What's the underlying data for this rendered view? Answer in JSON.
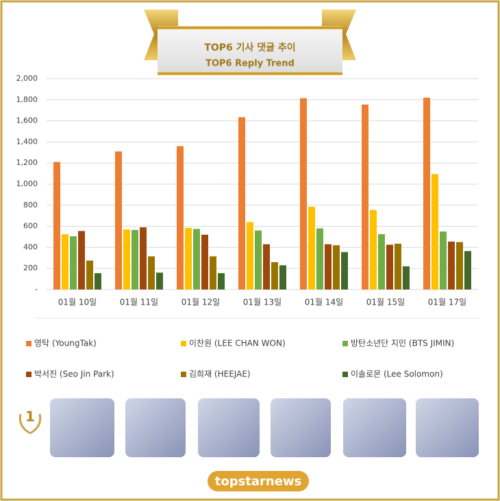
{
  "chart_data": {
    "type": "bar",
    "title": "TOP6 기사 댓글 추이",
    "subtitle": "TOP6 Reply Trend",
    "categories": [
      "01월 10일",
      "01월 11일",
      "01월 12일",
      "01월 13일",
      "01월 14일",
      "01월 15일",
      "01월 17일"
    ],
    "series": [
      {
        "name": "영탁 (YoungTak)",
        "color": "#ed7d31",
        "values": [
          1210,
          1310,
          1360,
          1635,
          1815,
          1755,
          1820
        ]
      },
      {
        "name": "이찬원 (LEE CHAN WON)",
        "color": "#ffc000",
        "values": [
          525,
          570,
          585,
          640,
          785,
          755,
          1095
        ]
      },
      {
        "name": "방탄소년단 지민 (BTS JIMIN)",
        "color": "#70ad47",
        "values": [
          505,
          565,
          575,
          560,
          580,
          525,
          550
        ]
      },
      {
        "name": "박서진 (Seo Jin Park)",
        "color": "#9e480e",
        "values": [
          555,
          590,
          520,
          430,
          430,
          425,
          455
        ]
      },
      {
        "name": "김희재 (HEEJAE)",
        "color": "#997300",
        "values": [
          275,
          315,
          315,
          260,
          420,
          435,
          450
        ]
      },
      {
        "name": "이솔로몬 (Lee Solomon)",
        "color": "#43682b",
        "values": [
          155,
          160,
          155,
          230,
          355,
          220,
          365
        ]
      }
    ],
    "ylim": [
      0,
      2000
    ],
    "yticks": [
      {
        "value": 0,
        "label": "-"
      },
      200,
      400,
      600,
      800,
      {
        "value": 1000,
        "label": "1,000"
      },
      {
        "value": 1200,
        "label": "1,200"
      },
      {
        "value": 1400,
        "label": "1,400"
      },
      {
        "value": 1600,
        "label": "1,600"
      },
      {
        "value": 1800,
        "label": "1,800"
      },
      {
        "value": 2000,
        "label": "2,000"
      }
    ],
    "grid": true
  },
  "rank_badge": "1",
  "logo": "topstarnews"
}
